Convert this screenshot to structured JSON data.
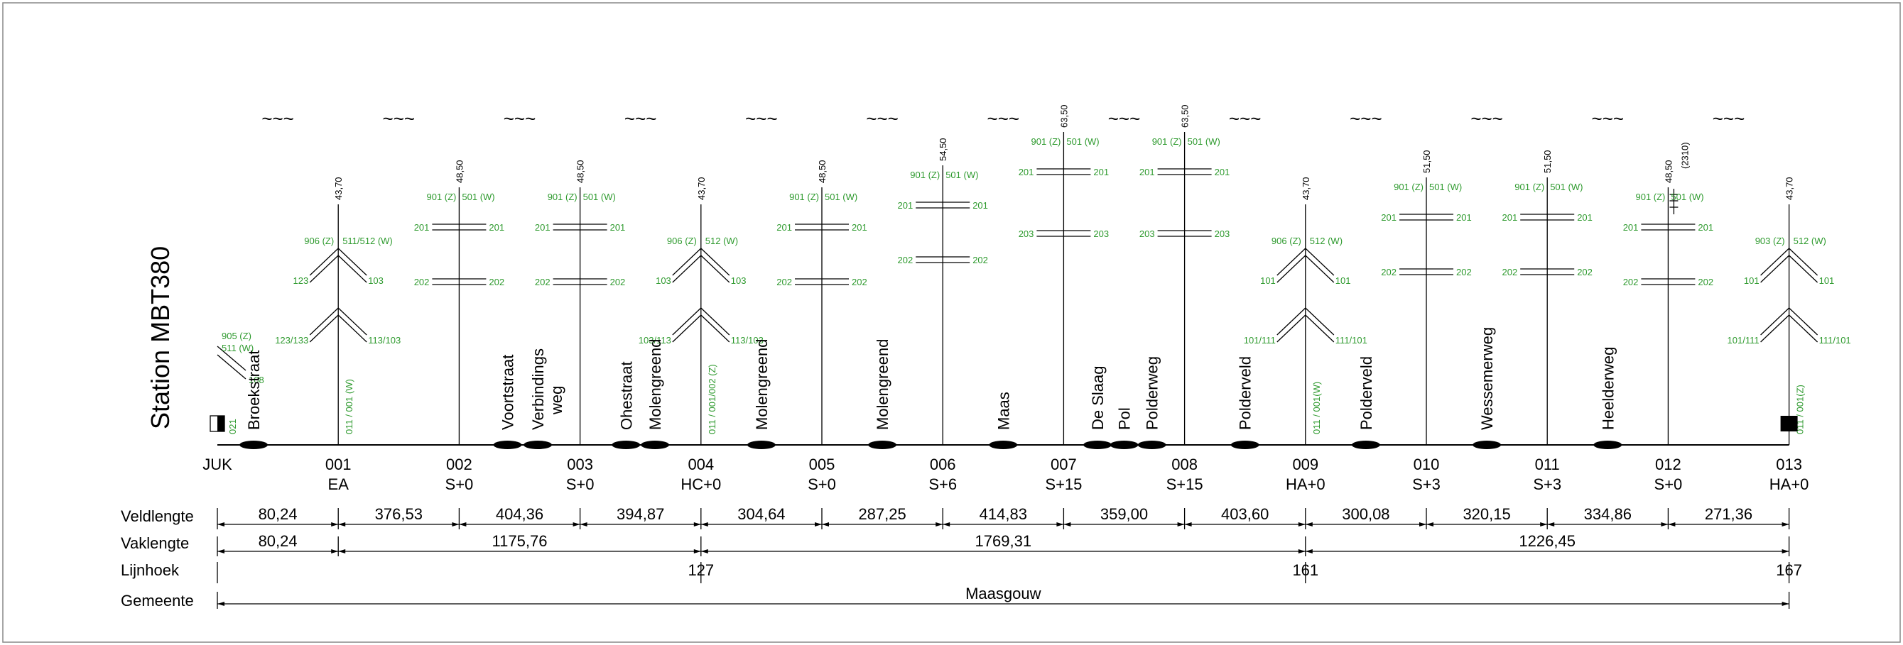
{
  "title": "Station MBT380",
  "row_labels": {
    "veldlengte": "Veldlengte",
    "vaklengte": "Vaklengte",
    "lijnhoek": "Lijnhoek",
    "gemeente": "Gemeente"
  },
  "wave_symbol": "~~~",
  "towers": [
    {
      "id": "JUK",
      "type": "",
      "height": "",
      "green_left": [
        "905 (Z)",
        "511 (W)"
      ],
      "green_right": [
        "108"
      ],
      "vertical": "021",
      "kind": "station-left"
    },
    {
      "id": "001",
      "type": "EA",
      "height": "43,70",
      "top_left": "906 (Z)",
      "top_right": "511/512 (W)",
      "arms": [
        [
          "123",
          "103"
        ],
        [
          "123/133",
          "113/103"
        ]
      ],
      "vertical": "011 / 001 (W)",
      "kind": "angle"
    },
    {
      "id": "002",
      "type": "S+0",
      "height": "48,50",
      "top_left": "901 (Z)",
      "top_right": "501 (W)",
      "arms": [
        [
          "201",
          "201"
        ],
        [
          "202",
          "202"
        ]
      ],
      "kind": "support"
    },
    {
      "id": "003",
      "type": "S+0",
      "height": "48,50",
      "top_left": "901 (Z)",
      "top_right": "501 (W)",
      "arms": [
        [
          "201",
          "201"
        ],
        [
          "202",
          "202"
        ]
      ],
      "kind": "support"
    },
    {
      "id": "004",
      "type": "HC+0",
      "height": "43,70",
      "top_left": "906 (Z)",
      "top_right": "512 (W)",
      "arms": [
        [
          "103",
          "103"
        ],
        [
          "103/113",
          "113/103"
        ]
      ],
      "vertical": "011 / 001/002 (Z)",
      "kind": "angle"
    },
    {
      "id": "005",
      "type": "S+0",
      "height": "48,50",
      "top_left": "901 (Z)",
      "top_right": "501 (W)",
      "arms": [
        [
          "201",
          "201"
        ],
        [
          "202",
          "202"
        ]
      ],
      "kind": "support"
    },
    {
      "id": "006",
      "type": "S+6",
      "height": "54,50",
      "top_left": "901 (Z)",
      "top_right": "501 (W)",
      "arms": [
        [
          "201",
          "201"
        ],
        [
          "202",
          "202"
        ]
      ],
      "kind": "support"
    },
    {
      "id": "007",
      "type": "S+15",
      "height": "63,50",
      "top_left": "901 (Z)",
      "top_right": "501 (W)",
      "arms": [
        [
          "201",
          "201"
        ],
        [
          "203",
          "203"
        ]
      ],
      "kind": "support"
    },
    {
      "id": "008",
      "type": "S+15",
      "height": "63,50",
      "top_left": "901 (Z)",
      "top_right": "501 (W)",
      "arms": [
        [
          "201",
          "201"
        ],
        [
          "203",
          "203"
        ]
      ],
      "kind": "support"
    },
    {
      "id": "009",
      "type": "HA+0",
      "height": "43,70",
      "top_left": "906 (Z)",
      "top_right": "512 (W)",
      "arms": [
        [
          "101",
          "101"
        ],
        [
          "101/111",
          "111/101"
        ]
      ],
      "vertical": "011 / 001(W)",
      "kind": "angle"
    },
    {
      "id": "010",
      "type": "S+3",
      "height": "51,50",
      "top_left": "901 (Z)",
      "top_right": "501 (W)",
      "arms": [
        [
          "201",
          "201"
        ],
        [
          "202",
          "202"
        ]
      ],
      "kind": "support"
    },
    {
      "id": "011",
      "type": "S+3",
      "height": "51,50",
      "top_left": "901 (Z)",
      "top_right": "501 (W)",
      "arms": [
        [
          "201",
          "201"
        ],
        [
          "202",
          "202"
        ]
      ],
      "kind": "support"
    },
    {
      "id": "012",
      "type": "S+0",
      "height": "48,50",
      "extra": "(2310)",
      "top_left": "901 (Z)",
      "top_right": "501 (W)",
      "arms": [
        [
          "201",
          "201"
        ],
        [
          "202",
          "202"
        ]
      ],
      "kind": "support"
    },
    {
      "id": "013",
      "type": "HA+0",
      "height": "43,70",
      "top_left": "903 (Z)",
      "top_right": "512 (W)",
      "arms": [
        [
          "101",
          "101"
        ],
        [
          "101/111",
          "111/101"
        ]
      ],
      "vertical": "011 / 001(Z)",
      "kind": "angle-end"
    }
  ],
  "crossings": [
    {
      "label": "Broekstraat",
      "at": 0.3
    },
    {
      "label": "Voortstraat",
      "at": 2.4
    },
    {
      "label": "Verbindings",
      "label2": "weg",
      "at": 2.65
    },
    {
      "label": "Ohestraat",
      "at": 3.38
    },
    {
      "label": "Molengreend",
      "at": 3.62
    },
    {
      "label": "Molengreend",
      "at": 4.5
    },
    {
      "label": "Molengreend",
      "at": 5.5
    },
    {
      "label": "Maas",
      "at": 6.5
    },
    {
      "label": "De Slaag",
      "at": 7.28
    },
    {
      "label": "Pol",
      "at": 7.5
    },
    {
      "label": "Polderweg",
      "at": 7.73
    },
    {
      "label": "Polderveld",
      "at": 8.5
    },
    {
      "label": "Polderveld",
      "at": 9.5
    },
    {
      "label": "Wessemerweg",
      "at": 10.5
    },
    {
      "label": "Heelderweg",
      "at": 11.5
    }
  ],
  "veldlengte": [
    "80,24",
    "376,53",
    "404,36",
    "394,87",
    "304,64",
    "287,25",
    "414,83",
    "359,00",
    "403,60",
    "300,08",
    "320,15",
    "334,86",
    "271,36"
  ],
  "vaklengte": [
    {
      "from": 0,
      "to": 1,
      "value": "80,24"
    },
    {
      "from": 1,
      "to": 4,
      "value": "1175,76"
    },
    {
      "from": 4,
      "to": 9,
      "value": "1769,31"
    },
    {
      "from": 9,
      "to": 13,
      "value": "1226,45"
    }
  ],
  "lijnhoek": [
    {
      "at": 4,
      "value": "127"
    },
    {
      "at": 9,
      "value": "161"
    },
    {
      "at": 13,
      "value": "167"
    }
  ],
  "gemeente": {
    "value": "Maasgouw"
  }
}
